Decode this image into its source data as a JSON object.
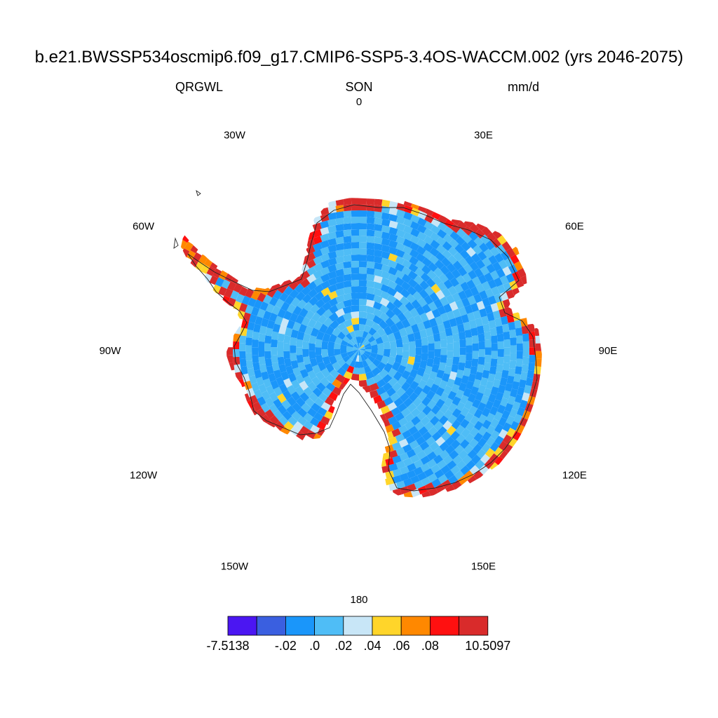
{
  "title": "b.e21.BWSSP534oscmip6.f09_g17.CMIP6-SSP5-3.4OS-WACCM.002 (yrs 2046-2075)",
  "subtitles": {
    "left": "QRGWL",
    "center": "SON",
    "right": "mm/d"
  },
  "map": {
    "projection": "south polar stereographic",
    "longitude_labels": [
      {
        "lon": 0,
        "label": "0"
      },
      {
        "lon": 30,
        "label": "30E"
      },
      {
        "lon": 60,
        "label": "60E"
      },
      {
        "lon": 90,
        "label": "90E"
      },
      {
        "lon": 120,
        "label": "120E"
      },
      {
        "lon": 150,
        "label": "150E"
      },
      {
        "lon": 180,
        "label": "180"
      },
      {
        "lon": -150,
        "label": "150W"
      },
      {
        "lon": -120,
        "label": "120W"
      },
      {
        "lon": -90,
        "label": "90W"
      },
      {
        "lon": -60,
        "label": "60W"
      },
      {
        "lon": -30,
        "label": "30W"
      }
    ],
    "field_description": "interior dominated by -0.02 to 0.02 mm/d; coastal margin 0.04 to 10.5 mm/d"
  },
  "colorbar": {
    "colors": [
      "#4b16f2",
      "#3a5fe0",
      "#1a96fa",
      "#4fbdf6",
      "#c8e6f7",
      "#ffd52a",
      "#ff8800",
      "#ff1010",
      "#d92b2b"
    ],
    "labels": [
      {
        "index": 0,
        "text": "-7.5138"
      },
      {
        "index": 2,
        "text": "-.02"
      },
      {
        "index": 3,
        "text": ".0"
      },
      {
        "index": 4,
        "text": ".02"
      },
      {
        "index": 5,
        "text": ".04"
      },
      {
        "index": 6,
        "text": ".06"
      },
      {
        "index": 7,
        "text": ".08"
      },
      {
        "index": 9,
        "text": "10.5097"
      }
    ]
  }
}
